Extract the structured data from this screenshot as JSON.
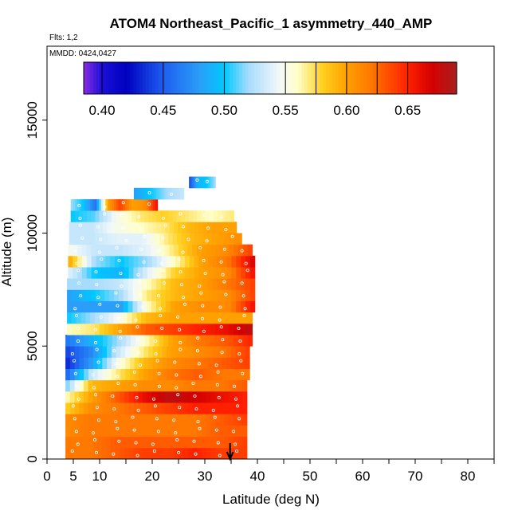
{
  "header": {
    "title": "ATOM4 Northeast_Pacific_1 asymmetry_440_AMP",
    "flights_label": "Flts: 1,2",
    "dates_label": "MMDD: 0424,0427"
  },
  "axes": {
    "xlabel": "Latitude (deg N)",
    "ylabel": "Altitude (m)",
    "x_ticks": [
      0,
      5,
      10,
      20,
      30,
      40,
      50,
      60,
      70,
      80
    ],
    "y_ticks": [
      0,
      5000,
      10000,
      15000
    ]
  },
  "colorbar": {
    "tick_labels": [
      "0.40",
      "0.45",
      "0.50",
      "0.55",
      "0.60",
      "0.65"
    ],
    "tick_values": [
      0.4,
      0.45,
      0.5,
      0.55,
      0.6,
      0.65
    ],
    "range": [
      0.385,
      0.69
    ],
    "stops": [
      {
        "v": 0.385,
        "c": "#8a2be2"
      },
      {
        "v": 0.4,
        "c": "#1a10d8"
      },
      {
        "v": 0.42,
        "c": "#0000c0"
      },
      {
        "v": 0.45,
        "c": "#1e5ef0"
      },
      {
        "v": 0.48,
        "c": "#2a9ef8"
      },
      {
        "v": 0.5,
        "c": "#00c8ff"
      },
      {
        "v": 0.52,
        "c": "#a8dcfc"
      },
      {
        "v": 0.545,
        "c": "#f2f8fa"
      },
      {
        "v": 0.56,
        "c": "#ffffc8"
      },
      {
        "v": 0.58,
        "c": "#ffd020"
      },
      {
        "v": 0.6,
        "c": "#ffa000"
      },
      {
        "v": 0.62,
        "c": "#ff7800"
      },
      {
        "v": 0.65,
        "c": "#ff2000"
      },
      {
        "v": 0.67,
        "c": "#d40000"
      },
      {
        "v": 0.69,
        "c": "#a82020"
      }
    ]
  },
  "chart_data": {
    "type": "heatmap",
    "title": "ATOM4 Northeast_Pacific_1 asymmetry_440_AMP",
    "xlabel": "Latitude (deg N)",
    "ylabel": "Altitude (m)",
    "xlim": [
      0,
      85
    ],
    "ylim": [
      0,
      17500
    ],
    "variable": "asymmetry_440_AMP",
    "flight_marker_latitude": 34.8,
    "rows": [
      {
        "y0": 0,
        "y1": 500,
        "x0": 3.5,
        "x1": 38.0,
        "v": [
          0.62,
          0.62,
          0.63,
          0.64,
          0.64,
          0.65,
          0.64,
          0.64
        ]
      },
      {
        "y0": 500,
        "y1": 1000,
        "x0": 3.5,
        "x1": 38.0,
        "v": [
          0.62,
          0.62,
          0.63,
          0.63,
          0.63,
          0.63,
          0.63,
          0.64
        ]
      },
      {
        "y0": 1000,
        "y1": 1500,
        "x0": 3.5,
        "x1": 38.0,
        "v": [
          0.61,
          0.62,
          0.62,
          0.62,
          0.62,
          0.62,
          0.63,
          0.63
        ]
      },
      {
        "y0": 1500,
        "y1": 2000,
        "x0": 3.5,
        "x1": 38.0,
        "v": [
          0.61,
          0.62,
          0.62,
          0.62,
          0.62,
          0.62,
          0.63,
          0.64
        ]
      },
      {
        "y0": 2000,
        "y1": 2500,
        "x0": 3.5,
        "x1": 38.0,
        "v": [
          0.58,
          0.61,
          0.62,
          0.63,
          0.64,
          0.65,
          0.65,
          0.65
        ]
      },
      {
        "y0": 2500,
        "y1": 3000,
        "x0": 3.5,
        "x1": 38.0,
        "v": [
          0.56,
          0.6,
          0.63,
          0.66,
          0.68,
          0.67,
          0.66,
          0.65
        ]
      },
      {
        "y0": 3000,
        "y1": 3500,
        "x0": 3.5,
        "x1": 38.0,
        "v": [
          0.51,
          0.59,
          0.6,
          0.61,
          0.61,
          0.62,
          0.62,
          0.63
        ]
      },
      {
        "y0": 3500,
        "y1": 4000,
        "x0": 3.5,
        "x1": 38.5,
        "v": [
          0.45,
          0.53,
          0.57,
          0.6,
          0.62,
          0.63,
          0.62,
          0.62
        ]
      },
      {
        "y0": 4000,
        "y1": 4500,
        "x0": 3.5,
        "x1": 38.5,
        "v": [
          0.43,
          0.48,
          0.55,
          0.59,
          0.61,
          0.62,
          0.63,
          0.64
        ]
      },
      {
        "y0": 4500,
        "y1": 5000,
        "x0": 3.5,
        "x1": 38.5,
        "v": [
          0.44,
          0.47,
          0.53,
          0.57,
          0.6,
          0.61,
          0.62,
          0.64
        ]
      },
      {
        "y0": 5000,
        "y1": 5500,
        "x0": 3.5,
        "x1": 39.0,
        "v": [
          0.46,
          0.49,
          0.52,
          0.56,
          0.6,
          0.62,
          0.63,
          0.65
        ]
      },
      {
        "y0": 5500,
        "y1": 6000,
        "x0": 3.8,
        "x1": 39.0,
        "v": [
          0.56,
          0.57,
          0.6,
          0.63,
          0.64,
          0.65,
          0.66,
          0.68
        ]
      },
      {
        "y0": 6000,
        "y1": 6500,
        "x0": 3.8,
        "x1": 39.0,
        "v": [
          0.5,
          0.52,
          0.55,
          0.59,
          0.6,
          0.6,
          0.6,
          0.6
        ]
      },
      {
        "y0": 6500,
        "y1": 7000,
        "x0": 3.8,
        "x1": 39.5,
        "v": [
          0.48,
          0.48,
          0.48,
          0.56,
          0.6,
          0.61,
          0.61,
          0.66
        ]
      },
      {
        "y0": 7000,
        "y1": 7500,
        "x0": 3.8,
        "x1": 39.5,
        "v": [
          0.48,
          0.5,
          0.52,
          0.57,
          0.59,
          0.6,
          0.61,
          0.64
        ]
      },
      {
        "y0": 7500,
        "y1": 8000,
        "x0": 3.8,
        "x1": 39.5,
        "v": [
          0.52,
          0.52,
          0.53,
          0.56,
          0.59,
          0.6,
          0.62,
          0.64
        ]
      },
      {
        "y0": 8000,
        "y1": 8500,
        "x0": 4.0,
        "x1": 39.5,
        "v": [
          0.54,
          0.5,
          0.49,
          0.54,
          0.58,
          0.6,
          0.61,
          0.66
        ]
      },
      {
        "y0": 8500,
        "y1": 9000,
        "x0": 4.0,
        "x1": 39.5,
        "v": [
          0.6,
          0.52,
          0.5,
          0.52,
          0.56,
          0.6,
          0.62,
          0.67
        ]
      },
      {
        "y0": 9000,
        "y1": 9500,
        "x0": 4.0,
        "x1": 39.0,
        "v": [
          0.55,
          0.53,
          0.53,
          0.54,
          0.57,
          0.6,
          0.61,
          0.64
        ]
      },
      {
        "y0": 9500,
        "y1": 10000,
        "x0": 4.2,
        "x1": 37.0,
        "v": [
          0.53,
          0.53,
          0.54,
          0.54,
          0.57,
          0.59,
          0.6,
          0.61
        ]
      },
      {
        "y0": 10000,
        "y1": 10500,
        "x0": 4.2,
        "x1": 36.0,
        "v": [
          0.53,
          0.53,
          0.55,
          0.56,
          0.57,
          0.59,
          0.6,
          0.6
        ]
      },
      {
        "y0": 10500,
        "y1": 11000,
        "x0": 4.5,
        "x1": 35.5,
        "v": [
          0.5,
          0.51,
          0.55,
          0.57,
          0.58,
          0.57,
          0.56,
          0.57
        ]
      },
      {
        "y0": 11000,
        "y1": 11500,
        "x0": 4.5,
        "x1": 21.0,
        "v": [
          0.52,
          0.5,
          0.46,
          0.6,
          0.64,
          0.6,
          0.61,
          0.66
        ]
      },
      {
        "y0": 11500,
        "y1": 12000,
        "x0": 16.5,
        "x1": 26.0,
        "v": [
          0.48,
          0.5,
          0.52,
          0.53
        ]
      },
      {
        "y0": 12000,
        "y1": 12500,
        "x0": 27.0,
        "x1": 32.0,
        "v": [
          0.44,
          0.49,
          0.5,
          0.52
        ]
      }
    ]
  }
}
